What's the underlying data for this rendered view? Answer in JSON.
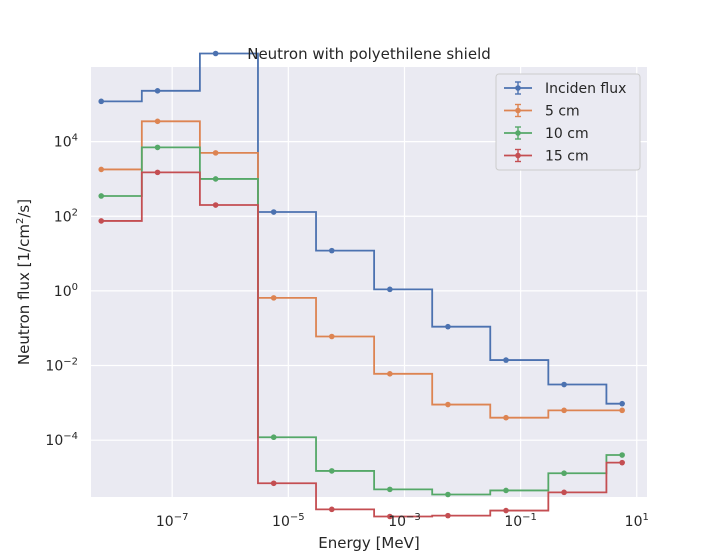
{
  "chart_data": {
    "type": "line",
    "title": "Neutron with polyethilene shield",
    "xlabel": "Energy [MeV]",
    "ylabel_main": "Neutron flux [1/cm",
    "ylabel_sup": "2",
    "ylabel_tail": "/s]",
    "x_scale": "log",
    "y_scale": "log",
    "xlim": [
      4e-09,
      15
    ],
    "ylim": [
      3e-06,
      1000000.0
    ],
    "grid": true,
    "legend_position": "top-right",
    "x_ticks": [
      {
        "value": 1e-07,
        "base": "10",
        "exp": "−7"
      },
      {
        "value": 1e-05,
        "base": "10",
        "exp": "−5"
      },
      {
        "value": 0.001,
        "base": "10",
        "exp": "−3"
      },
      {
        "value": 0.1,
        "base": "10",
        "exp": "−1"
      },
      {
        "value": 10,
        "base": "10",
        "exp": "1"
      }
    ],
    "y_ticks": [
      {
        "value": 0.0001,
        "base": "10",
        "exp": "−4"
      },
      {
        "value": 0.01,
        "base": "10",
        "exp": "−2"
      },
      {
        "value": 1,
        "base": "10",
        "exp": "0"
      },
      {
        "value": 100,
        "base": "10",
        "exp": "2"
      },
      {
        "value": 10000,
        "base": "10",
        "exp": "4"
      }
    ],
    "bin_edges": [
      6e-09,
      3e-08,
      3e-07,
      3e-06,
      3e-05,
      0.0003,
      0.003,
      0.03,
      0.3,
      3,
      6
    ],
    "x": [
      6e-09,
      5.6e-08,
      5.6e-07,
      5.6e-06,
      5.6e-05,
      0.00056,
      0.0056,
      0.056,
      0.56,
      5.6
    ],
    "series": [
      {
        "name": "Inciden flux",
        "color": "#4c72b0",
        "values": [
          120000,
          230000,
          2300000,
          130,
          12,
          1.1,
          0.11,
          0.014,
          0.0031,
          0.00095
        ]
      },
      {
        "name": "5 cm",
        "color": "#dd8452",
        "values": [
          1800,
          35000,
          5000,
          0.65,
          0.06,
          0.006,
          0.0009,
          0.0004,
          0.00063,
          0.00063
        ]
      },
      {
        "name": "10 cm",
        "color": "#55a868",
        "values": [
          350,
          7000,
          1000,
          0.00012,
          1.5e-05,
          4.8e-06,
          3.5e-06,
          4.5e-06,
          1.3e-05,
          4e-05
        ]
      },
      {
        "name": "15 cm",
        "color": "#c44e52",
        "values": [
          75,
          1500,
          200,
          7e-06,
          1.4e-06,
          9e-07,
          9.5e-07,
          1.3e-06,
          4e-06,
          2.5e-05
        ]
      }
    ],
    "colors": {
      "plot_background": "#eaeaf2",
      "grid": "#ffffff",
      "text": "#262626",
      "legend_border": "#cccccc"
    }
  }
}
